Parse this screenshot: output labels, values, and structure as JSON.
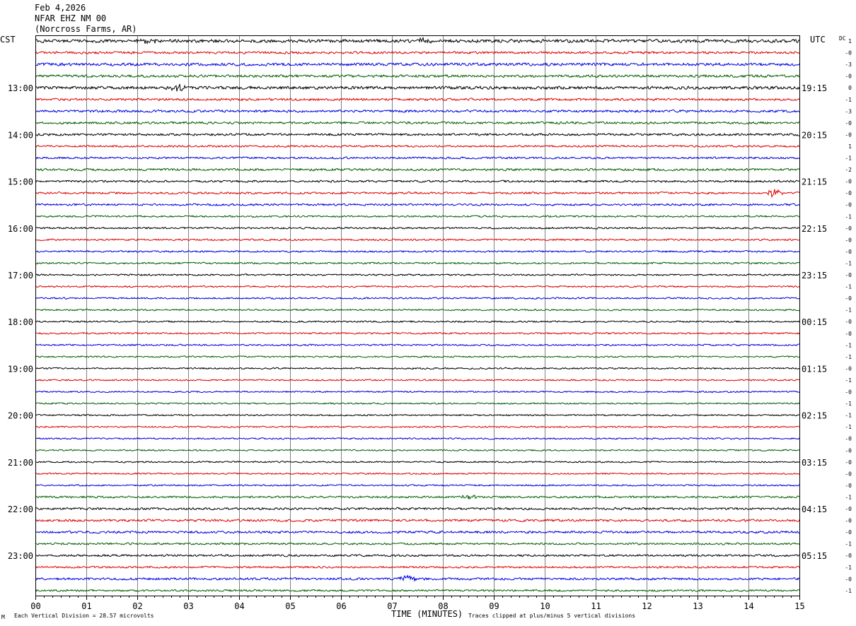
{
  "header": {
    "date": "Feb 4,2026",
    "station": "NFAR EHZ NM 00",
    "location": "(Norcross Farms, AR)",
    "left_tz": "CST",
    "right_tz": "UTC",
    "dc_label": "DC"
  },
  "footer": {
    "scale_text": "Each Vertical Division =   28.57 microvolts",
    "x_axis_title": "TIME (MINUTES)",
    "clip_text": "Traces clipped at plus/minus 5 vertical divisions",
    "corner_mark": "M"
  },
  "colors": {
    "trace_cycle": [
      "#000000",
      "#e00000",
      "#0000e0",
      "#006000"
    ],
    "grid": "#808080",
    "frame": "#000000"
  },
  "chart_data": {
    "type": "line",
    "title": "NFAR EHZ NM 00",
    "x_axis": {
      "label": "TIME (MINUTES)",
      "range": [
        0,
        15
      ],
      "tick_labels": [
        "00",
        "01",
        "02",
        "03",
        "04",
        "05",
        "06",
        "07",
        "08",
        "09",
        "10",
        "11",
        "12",
        "13",
        "14",
        "15"
      ]
    },
    "trace_count": 48,
    "minutes_per_trace": 15,
    "left_hour_labels": [
      "13:00",
      "14:00",
      "15:00",
      "16:00",
      "17:00",
      "18:00",
      "19:00",
      "20:00",
      "21:00",
      "22:00",
      "23:00"
    ],
    "right_hour_labels": [
      "19:15",
      "20:15",
      "21:15",
      "22:15",
      "23:15",
      "00:15",
      "01:15",
      "02:15",
      "03:15",
      "04:15",
      "05:15"
    ],
    "hour_label_first_trace": 4,
    "traces_per_hour": 4,
    "dc_offsets": [
      "1",
      "-0",
      "-3",
      "-0",
      "0",
      "-1",
      "-3",
      "-0",
      "-0",
      "1",
      "-1",
      "-2",
      "-0",
      "-0",
      "-0",
      "-1",
      "-0",
      "-0",
      "-0",
      "-1",
      "-0",
      "-1",
      "-0",
      "-1",
      "-0",
      "-0",
      "-1",
      "-1",
      "-0",
      "-1",
      "-0",
      "-1",
      "-1",
      "-1",
      "-0",
      "-0",
      "-0",
      "-0",
      "-0",
      "-1",
      "-0",
      "-0",
      "-0",
      "-1",
      "-0",
      "-1",
      "-0",
      "-1"
    ],
    "noise_amplitude": [
      2.5,
      1.8,
      2.2,
      2.0,
      2.4,
      1.8,
      1.9,
      1.8,
      1.8,
      1.5,
      1.5,
      1.8,
      1.6,
      1.6,
      1.6,
      1.4,
      1.4,
      1.4,
      1.4,
      1.4,
      1.3,
      1.3,
      1.3,
      1.3,
      1.3,
      1.3,
      1.3,
      1.2,
      1.2,
      1.2,
      1.2,
      1.2,
      1.2,
      1.2,
      1.2,
      1.2,
      1.2,
      1.2,
      1.2,
      1.6,
      1.7,
      1.8,
      1.8,
      1.6,
      1.6,
      1.5,
      1.8,
      1.5
    ],
    "events": [
      {
        "trace": 0,
        "minute": 2.2,
        "amplitude": 4
      },
      {
        "trace": 0,
        "minute": 7.6,
        "amplitude": 3
      },
      {
        "trace": 4,
        "minute": 2.8,
        "amplitude": 5
      },
      {
        "trace": 13,
        "minute": 14.5,
        "amplitude": 6
      },
      {
        "trace": 39,
        "minute": 8.5,
        "amplitude": 3
      },
      {
        "trace": 46,
        "minute": 7.3,
        "amplitude": 5
      }
    ]
  }
}
